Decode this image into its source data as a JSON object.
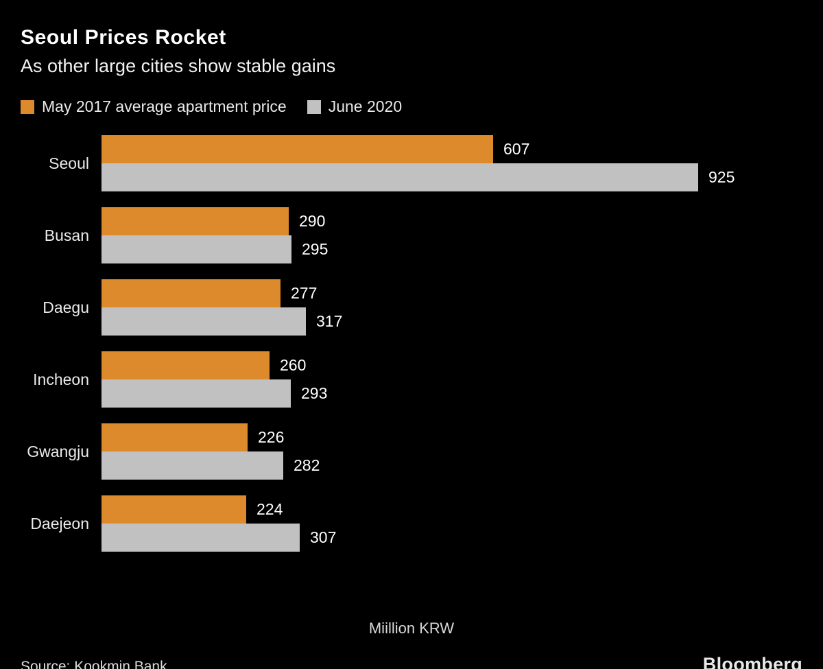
{
  "header": {
    "title": "Seoul Prices Rocket",
    "subtitle": "As other large cities show stable gains"
  },
  "chart_data": {
    "type": "bar",
    "orientation": "horizontal",
    "title": "Seoul Prices Rocket",
    "subtitle": "As other large cities show stable gains",
    "xlabel": "Miillion KRW",
    "categories": [
      "Seoul",
      "Busan",
      "Daegu",
      "Incheon",
      "Gwangju",
      "Daejeon"
    ],
    "series": [
      {
        "name": "May 2017 average apartment price",
        "color": "#DD8A2D",
        "values": [
          607,
          290,
          277,
          260,
          226,
          224
        ]
      },
      {
        "name": "June 2020",
        "color": "#C1C1C2",
        "values": [
          925,
          295,
          317,
          293,
          282,
          307
        ]
      }
    ],
    "xlim": [
      0,
      925
    ],
    "grid": false,
    "legend_position": "top",
    "value_labels": true
  },
  "footer": {
    "xaxis_label": "Miillion KRW",
    "source": "Source: Kookmin Bank",
    "brand": "Bloomberg"
  }
}
